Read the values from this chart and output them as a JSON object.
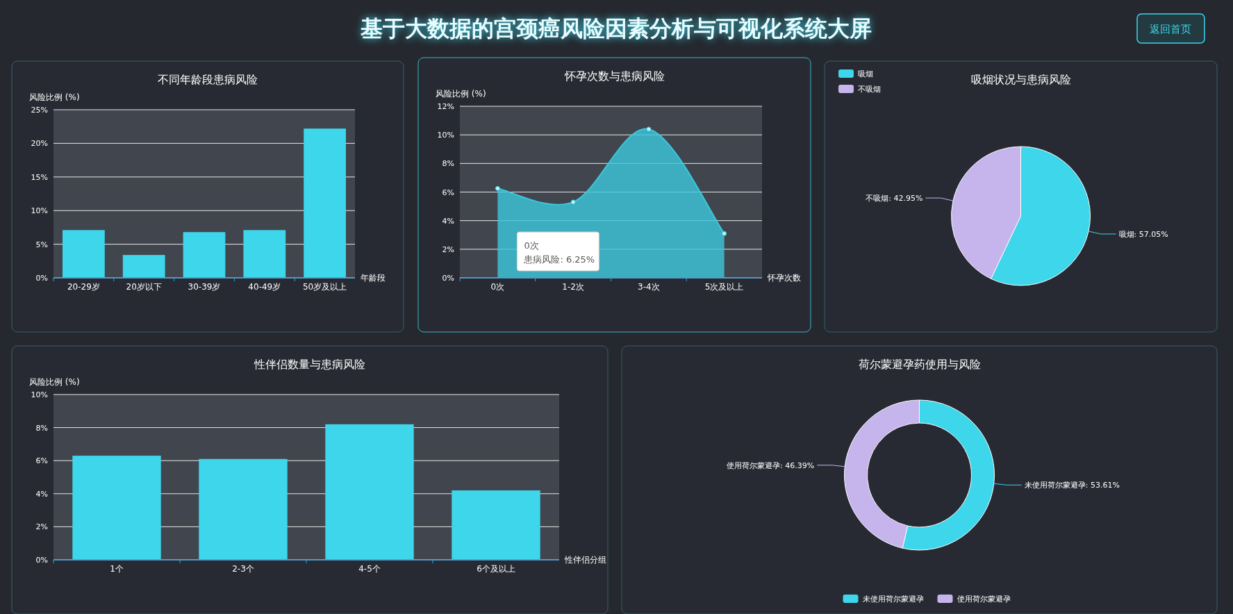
{
  "chart_data": [
    {
      "type": "other",
      "title": "基于大数据的宫颈癌风险因素分析与可视化系统大屏",
      "annotations": [
        "返回首页"
      ]
    },
    {
      "type": "bar",
      "title": "不同年龄段患病风险",
      "ylabel": "风险比例 (%)",
      "xlabel": "年龄段",
      "categories": [
        "20-29岁",
        "20岁以下",
        "30-39岁",
        "40-49岁",
        "50岁及以上"
      ],
      "values": [
        7.1,
        3.4,
        6.8,
        7.1,
        22.2
      ],
      "color": "#3dd6ea",
      "ylim": [
        0,
        25
      ],
      "yticks": [
        {
          "value": 0,
          "label": "0%"
        },
        {
          "value": 5,
          "label": "5%"
        },
        {
          "value": 10,
          "label": "10%"
        },
        {
          "value": 15,
          "label": "15%"
        },
        {
          "value": 20,
          "label": "20%"
        },
        {
          "value": 25,
          "label": "25%"
        }
      ],
      "grid": "y"
    },
    {
      "type": "area",
      "title": "怀孕次数与患病风险",
      "ylabel": "风险比例 (%)",
      "xlabel": "怀孕次数",
      "categories": [
        "0次",
        "1-2次",
        "3-4次",
        "5次及以上"
      ],
      "values": [
        6.25,
        5.3,
        10.4,
        3.1
      ],
      "color": "#3bc8dc",
      "marker": "circle",
      "ylim": [
        0,
        12
      ],
      "yticks": [
        {
          "value": 0,
          "label": "0%"
        },
        {
          "value": 2,
          "label": "2%"
        },
        {
          "value": 4,
          "label": "4%"
        },
        {
          "value": 6,
          "label": "6%"
        },
        {
          "value": 8,
          "label": "8%"
        },
        {
          "value": 10,
          "label": "10%"
        },
        {
          "value": 12,
          "label": "12%"
        }
      ],
      "grid": "y",
      "annotations": [
        "0次",
        "患病风险: 6.25%"
      ]
    },
    {
      "type": "pie",
      "title": "吸烟状况与患病风险",
      "categories": [
        "吸烟",
        "不吸烟"
      ],
      "values": [
        57.05,
        42.95
      ],
      "colors": [
        "#3dd6ea",
        "#c6b4ec"
      ],
      "value_labels": [
        "吸烟: 57.05%",
        "不吸烟: 42.95%"
      ],
      "legend": "top left"
    },
    {
      "type": "bar",
      "title": "性伴侣数量与患病风险",
      "ylabel": "风险比例 (%)",
      "xlabel": "性伴侣分组",
      "categories": [
        "1个",
        "2-3个",
        "4-5个",
        "6个及以上"
      ],
      "values": [
        6.3,
        6.1,
        8.2,
        4.2
      ],
      "color": "#3dd6ea",
      "ylim": [
        0,
        10
      ],
      "yticks": [
        {
          "value": 0,
          "label": "0%"
        },
        {
          "value": 2,
          "label": "2%"
        },
        {
          "value": 4,
          "label": "4%"
        },
        {
          "value": 6,
          "label": "6%"
        },
        {
          "value": 8,
          "label": "8%"
        },
        {
          "value": 10,
          "label": "10%"
        }
      ],
      "grid": "y"
    },
    {
      "type": "donut",
      "title": "荷尔蒙避孕药使用与风险",
      "categories": [
        "未使用荷尔蒙避孕",
        "使用荷尔蒙避孕"
      ],
      "values": [
        53.61,
        46.39
      ],
      "colors": [
        "#3dd6ea",
        "#c6b4ec"
      ],
      "value_labels": [
        "未使用荷尔蒙避孕: 53.61%",
        "使用荷尔蒙避孕: 46.39%"
      ],
      "legend": "bottom"
    }
  ]
}
